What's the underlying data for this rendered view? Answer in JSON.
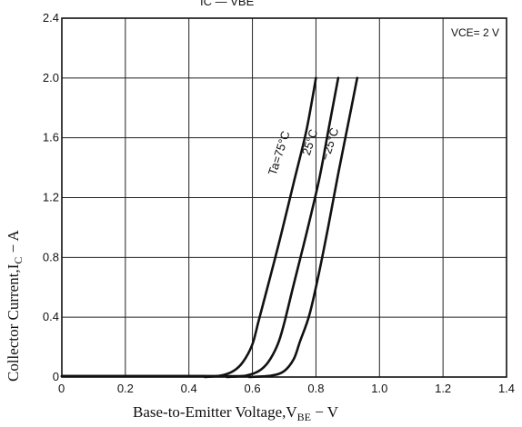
{
  "chart_data": {
    "type": "line",
    "header_fragment": "IC — VBE",
    "xlabel": "Base-to-Emitter Voltage,V",
    "xlabel_sub": "BE",
    "xlabel_unit": " − V",
    "ylabel": "Collector Current,I",
    "ylabel_sub": "C",
    "ylabel_unit": " − A",
    "xlim": [
      0,
      1.4
    ],
    "ylim": [
      0,
      2.4
    ],
    "x_ticks": [
      0,
      0.2,
      0.4,
      0.6,
      0.8,
      1.0,
      1.2,
      1.4
    ],
    "x_tick_labels": [
      "0",
      "0.2",
      "0.4",
      "0.6",
      "0.8",
      "1.0",
      "1.2",
      "1.4"
    ],
    "y_ticks": [
      0,
      0.4,
      0.8,
      1.2,
      1.6,
      2.0,
      2.4
    ],
    "y_tick_labels": [
      "0",
      "0.4",
      "0.8",
      "1.2",
      "1.6",
      "2.0",
      "2.4"
    ],
    "grid": true,
    "annotation": "VCE= 2 V",
    "series": [
      {
        "name": "Ta=75°C",
        "x": [
          0.45,
          0.5,
          0.54,
          0.57,
          0.6,
          0.62,
          0.65,
          0.69,
          0.73,
          0.77,
          0.8
        ],
        "y": [
          0,
          0.01,
          0.04,
          0.1,
          0.22,
          0.38,
          0.62,
          0.95,
          1.3,
          1.65,
          2.0
        ]
      },
      {
        "name": "25°C",
        "x": [
          0.52,
          0.58,
          0.62,
          0.65,
          0.68,
          0.7,
          0.73,
          0.77,
          0.81,
          0.84,
          0.87
        ],
        "y": [
          0,
          0.01,
          0.04,
          0.1,
          0.22,
          0.36,
          0.62,
          0.96,
          1.32,
          1.66,
          2.0
        ]
      },
      {
        "name": "−25°C",
        "x": [
          0.59,
          0.66,
          0.7,
          0.73,
          0.75,
          0.78,
          0.81,
          0.84,
          0.87,
          0.9,
          0.93
        ],
        "y": [
          0,
          0.01,
          0.04,
          0.12,
          0.24,
          0.42,
          0.7,
          1.02,
          1.36,
          1.68,
          2.0
        ]
      }
    ]
  }
}
